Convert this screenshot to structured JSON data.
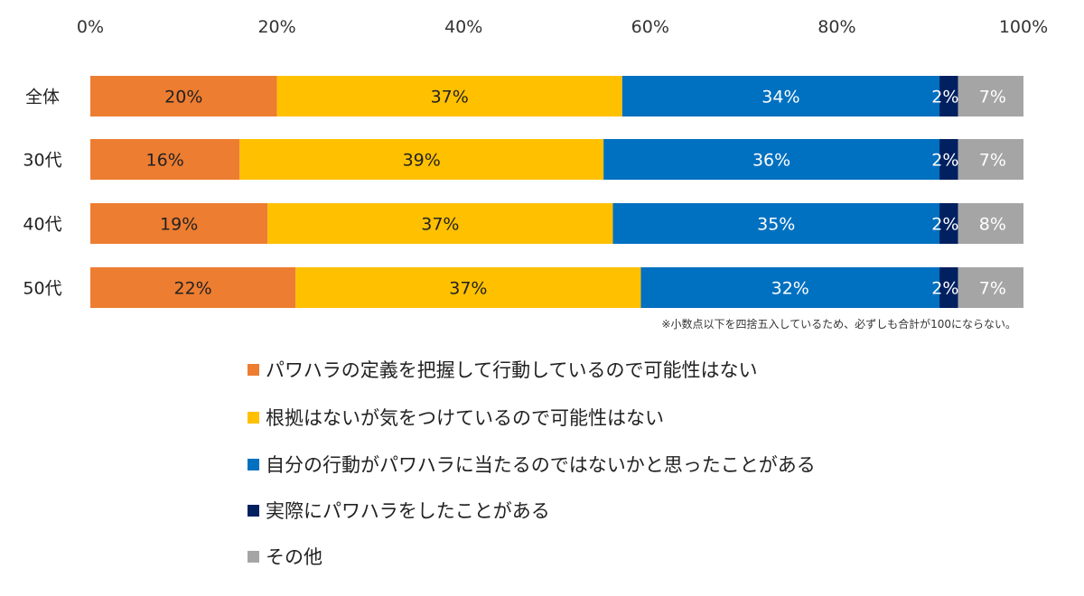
{
  "chart_data": {
    "type": "bar",
    "orientation": "horizontal-stacked",
    "xlim": [
      0,
      100
    ],
    "x_ticks": [
      "0%",
      "20%",
      "40%",
      "60%",
      "80%",
      "100%"
    ],
    "categories": [
      "全体",
      "30代",
      "40代",
      "50代"
    ],
    "series": [
      {
        "name": "パワハラの定義を把握して行動しているので可能性はない",
        "color": "#ED7D31",
        "values": [
          20,
          16,
          19,
          22
        ],
        "labels": [
          "20%",
          "16%",
          "19%",
          "22%"
        ]
      },
      {
        "name": "根拠はないが気をつけているので可能性はない",
        "color": "#FFC000",
        "values": [
          37,
          39,
          37,
          37
        ],
        "labels": [
          "37%",
          "39%",
          "37%",
          "37%"
        ]
      },
      {
        "name": "自分の行動がパワハラに当たるのではないかと思ったことがある",
        "color": "#0070C0",
        "values": [
          34,
          36,
          35,
          32
        ],
        "labels": [
          "34%",
          "36%",
          "35%",
          "32%"
        ]
      },
      {
        "name": "実際にパワハラをしたことがある",
        "color": "#002060",
        "values": [
          2,
          2,
          2,
          2
        ],
        "labels": [
          "2%",
          "2%",
          "2%",
          "2%"
        ]
      },
      {
        "name": "その他",
        "color": "#A5A5A5",
        "values": [
          7,
          7,
          8,
          7
        ],
        "labels": [
          "7%",
          "7%",
          "8%",
          "7%"
        ]
      }
    ],
    "note": "※小数点以下を四捨五入しているため、必ずしも合計が100にならない。",
    "legend_position": "bottom"
  }
}
